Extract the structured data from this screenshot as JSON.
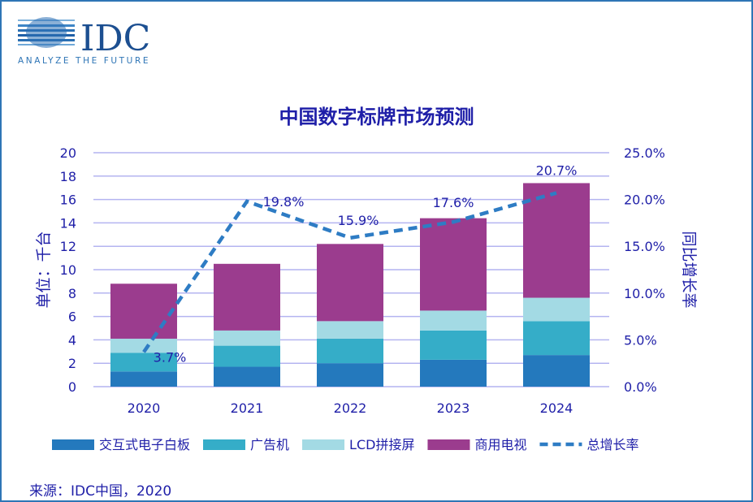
{
  "logo": {
    "brand": "IDC",
    "tagline": "ANALYZE THE FUTURE"
  },
  "source": "来源：IDC中国，2020",
  "chart_data": {
    "type": "bar",
    "stacked": true,
    "title": "中国数字标牌市场预测",
    "ylabel": "单位：千台",
    "y2label": "同比增长率",
    "ylim": [
      0,
      20
    ],
    "y2lim": [
      0,
      25
    ],
    "yticks": [
      "0",
      "2",
      "4",
      "6",
      "8",
      "10",
      "12",
      "14",
      "16",
      "18",
      "20"
    ],
    "y2ticks": [
      "0.0%",
      "5.0%",
      "10.0%",
      "15.0%",
      "20.0%",
      "25.0%"
    ],
    "grid": true,
    "legend_position": "bottom",
    "categories": [
      "2020",
      "2021",
      "2022",
      "2023",
      "2024"
    ],
    "series": [
      {
        "name": "交互式电子白板",
        "color": "#2479bd",
        "values": [
          1.3,
          1.7,
          2.0,
          2.3,
          2.7
        ]
      },
      {
        "name": "广告机",
        "color": "#35adc8",
        "values": [
          1.6,
          1.8,
          2.1,
          2.5,
          2.9
        ]
      },
      {
        "name": "LCD拼接屏",
        "color": "#a3dae4",
        "values": [
          1.2,
          1.3,
          1.5,
          1.7,
          2.0
        ]
      },
      {
        "name": "商用电视",
        "color": "#9b3c8e",
        "values": [
          4.7,
          5.7,
          6.6,
          7.9,
          9.8
        ]
      }
    ],
    "line": {
      "name": "总增长率",
      "color": "#2e7cc4",
      "axis": "right",
      "values": [
        3.7,
        19.8,
        15.9,
        17.6,
        20.7
      ],
      "labels": [
        "3.7%",
        "19.8%",
        "15.9%",
        "17.6%",
        "20.7%"
      ]
    }
  }
}
